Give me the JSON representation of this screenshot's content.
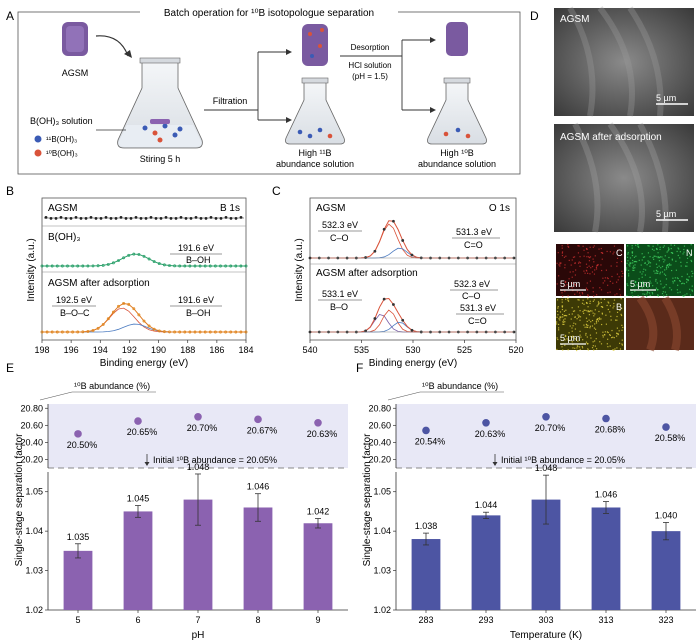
{
  "figure": {
    "panel_letters": [
      "A",
      "B",
      "C",
      "D",
      "E",
      "F"
    ],
    "panel_a": {
      "title": "Batch operation for ¹⁰B isotopologue separation",
      "agsm_label": "AGSM",
      "solution_label": "B(OH)₃ solution",
      "legend_11b": "¹¹B(OH)₃",
      "legend_10b": "¹⁰B(OH)₃",
      "stirring": "Stiring 5 h",
      "filtration": "Filtration",
      "desorption": "Desorption",
      "hcl": "HCl solution",
      "ph_cond": "(pH = 1.5)",
      "high11_line1": "High ¹¹B",
      "high11_line2": "abundance solution",
      "high10": "High ¹⁰B",
      "high10_line2": "abundance solution"
    },
    "panel_b": {
      "element": "B 1s",
      "ylabel": "Intensity (a.u.)",
      "xlabel": "Binding energy (eV)",
      "ticks": [
        "198",
        "196",
        "194",
        "192",
        "190",
        "188",
        "186",
        "184"
      ],
      "row1": "AGSM",
      "row2": "B(OH)₃",
      "row2_peak": "191.6 eV",
      "row2_bond": "B–OH",
      "row3": "AGSM after adsorption",
      "row3_peak1": "192.5 eV",
      "row3_bond1": "B–O–C",
      "row3_peak2": "191.6 eV",
      "row3_bond2": "B–OH"
    },
    "panel_c": {
      "element": "O 1s",
      "ylabel": "Intensity (a.u.)",
      "xlabel": "Binding energy (eV)",
      "ticks": [
        "540",
        "535",
        "530",
        "525",
        "520"
      ],
      "row1": "AGSM",
      "r1_p1": "532.3 eV",
      "r1_b1": "C–O",
      "r1_p2": "531.3 eV",
      "r1_b2": "C=O",
      "row2": "AGSM after adsorption",
      "r2_p1": "533.1 eV",
      "r2_b1": "B–O",
      "r2_p2": "532.3 eV",
      "r2_b2": "C–O",
      "r2_p3": "531.3 eV",
      "r2_b3": "C=O"
    },
    "panel_d": {
      "img1": "AGSM",
      "img2": "AGSM after adsorption",
      "scale": "5 µm",
      "map_c": "C",
      "map_n": "N",
      "map_b": "B"
    }
  },
  "chart_data": [
    {
      "type": "bar",
      "panel": "E",
      "xlabel": "pH",
      "ylabel": "Single-stage separation factor",
      "categories": [
        "5",
        "6",
        "7",
        "8",
        "9"
      ],
      "values": [
        1.035,
        1.045,
        1.048,
        1.046,
        1.042
      ],
      "value_labels": [
        "1.035",
        "1.045",
        "1.048",
        "1.046",
        "1.042"
      ],
      "errors": [
        0.0018,
        0.0015,
        0.0065,
        0.0035,
        0.0012
      ],
      "ylim": [
        1.02,
        1.055
      ],
      "yticks": [
        "1.02",
        "1.03",
        "1.04",
        "1.05"
      ],
      "color": "#8b62b0",
      "inset": {
        "title": "¹⁰B abundance (%)",
        "values": [
          20.5,
          20.65,
          20.7,
          20.67,
          20.63
        ],
        "value_labels": [
          "20.50%",
          "20.65%",
          "20.70%",
          "20.67%",
          "20.63%"
        ],
        "yticks": [
          "20.80",
          "20.60",
          "20.40",
          "20.20"
        ],
        "ylim": [
          20.1,
          20.85
        ],
        "initial_label": "Initial ¹⁰B abundance = 20.05%",
        "color": "#8b62b0"
      }
    },
    {
      "type": "bar",
      "panel": "F",
      "xlabel": "Temperature (K)",
      "ylabel": "Single-stage separation factor",
      "categories": [
        "283",
        "293",
        "303",
        "313",
        "323"
      ],
      "values": [
        1.038,
        1.044,
        1.048,
        1.046,
        1.04
      ],
      "value_labels": [
        "1.038",
        "1.044",
        "1.048",
        "1.046",
        "1.040"
      ],
      "errors": [
        0.0015,
        0.0008,
        0.0062,
        0.0015,
        0.0022
      ],
      "ylim": [
        1.02,
        1.055
      ],
      "yticks": [
        "1.02",
        "1.03",
        "1.04",
        "1.05"
      ],
      "color": "#4d55a3",
      "inset": {
        "title": "¹⁰B abundance (%)",
        "values": [
          20.54,
          20.63,
          20.7,
          20.68,
          20.58
        ],
        "value_labels": [
          "20.54%",
          "20.63%",
          "20.70%",
          "20.68%",
          "20.58%"
        ],
        "yticks": [
          "20.80",
          "20.60",
          "20.40",
          "20.20"
        ],
        "ylim": [
          20.1,
          20.85
        ],
        "initial_label": "Initial ¹⁰B abundance = 20.05%",
        "color": "#4d55a3"
      }
    }
  ]
}
